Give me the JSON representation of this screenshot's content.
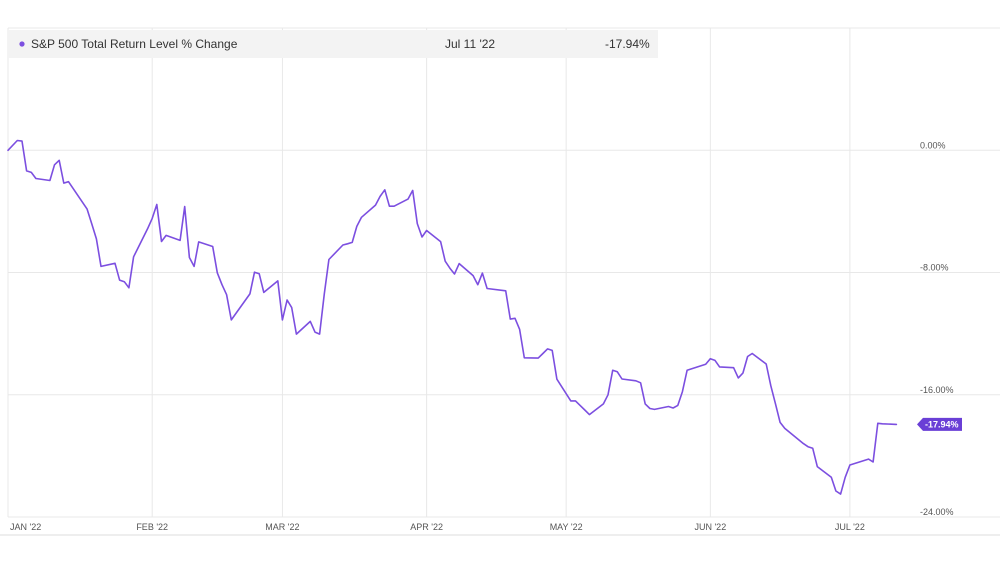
{
  "legend": {
    "series_name": "S&P 500 Total Return Level % Change",
    "date": "Jul 11 '22",
    "value": "-17.94%"
  },
  "colors": {
    "series": "#7c4fe0",
    "badge": "#6a3fd6",
    "grid": "#e8e8e8",
    "legend_bg": "#f3f3f3"
  },
  "chart_data": {
    "type": "line",
    "x_ticks": [
      "JAN '22",
      "FEB '22",
      "MAR '22",
      "APR '22",
      "MAY '22",
      "JUN '22",
      "JUL '22"
    ],
    "y_ticks": [
      "0.00%",
      "-8.00%",
      "-16.00%",
      "-24.00%"
    ],
    "y_tick_values": [
      0,
      -8,
      -16,
      -24
    ],
    "ylim": [
      -24,
      8
    ],
    "grid": true,
    "last_value_label": "-17.94%",
    "series": [
      {
        "name": "S&P 500 Total Return Level % Change",
        "x": [
          "2022-01-01",
          "2022-01-03",
          "2022-01-04",
          "2022-01-05",
          "2022-01-06",
          "2022-01-07",
          "2022-01-10",
          "2022-01-11",
          "2022-01-12",
          "2022-01-13",
          "2022-01-14",
          "2022-01-18",
          "2022-01-19",
          "2022-01-20",
          "2022-01-21",
          "2022-01-24",
          "2022-01-25",
          "2022-01-26",
          "2022-01-27",
          "2022-01-28",
          "2022-01-31",
          "2022-02-01",
          "2022-02-02",
          "2022-02-03",
          "2022-02-04",
          "2022-02-07",
          "2022-02-08",
          "2022-02-09",
          "2022-02-10",
          "2022-02-11",
          "2022-02-14",
          "2022-02-15",
          "2022-02-16",
          "2022-02-17",
          "2022-02-18",
          "2022-02-22",
          "2022-02-23",
          "2022-02-24",
          "2022-02-25",
          "2022-02-28",
          "2022-03-01",
          "2022-03-02",
          "2022-03-03",
          "2022-03-04",
          "2022-03-07",
          "2022-03-08",
          "2022-03-09",
          "2022-03-10",
          "2022-03-11",
          "2022-03-14",
          "2022-03-15",
          "2022-03-16",
          "2022-03-17",
          "2022-03-18",
          "2022-03-21",
          "2022-03-22",
          "2022-03-23",
          "2022-03-24",
          "2022-03-25",
          "2022-03-28",
          "2022-03-29",
          "2022-03-30",
          "2022-03-31",
          "2022-04-01",
          "2022-04-04",
          "2022-04-05",
          "2022-04-06",
          "2022-04-07",
          "2022-04-08",
          "2022-04-11",
          "2022-04-12",
          "2022-04-13",
          "2022-04-14",
          "2022-04-18",
          "2022-04-19",
          "2022-04-20",
          "2022-04-21",
          "2022-04-22",
          "2022-04-25",
          "2022-04-26",
          "2022-04-27",
          "2022-04-28",
          "2022-04-29",
          "2022-05-02",
          "2022-05-03",
          "2022-05-04",
          "2022-05-05",
          "2022-05-06",
          "2022-05-09",
          "2022-05-10",
          "2022-05-11",
          "2022-05-12",
          "2022-05-13",
          "2022-05-16",
          "2022-05-17",
          "2022-05-18",
          "2022-05-19",
          "2022-05-20",
          "2022-05-23",
          "2022-05-24",
          "2022-05-25",
          "2022-05-26",
          "2022-05-27",
          "2022-05-31",
          "2022-06-01",
          "2022-06-02",
          "2022-06-03",
          "2022-06-06",
          "2022-06-07",
          "2022-06-08",
          "2022-06-09",
          "2022-06-10",
          "2022-06-13",
          "2022-06-14",
          "2022-06-15",
          "2022-06-16",
          "2022-06-17",
          "2022-06-21",
          "2022-06-22",
          "2022-06-23",
          "2022-06-24",
          "2022-06-27",
          "2022-06-28",
          "2022-06-29",
          "2022-06-30",
          "2022-07-01",
          "2022-07-05",
          "2022-07-06",
          "2022-07-07",
          "2022-07-08",
          "2022-07-11"
        ],
        "values": [
          0.0,
          0.64,
          0.6,
          -1.35,
          -1.45,
          -1.85,
          -1.98,
          -0.95,
          -0.66,
          -2.15,
          -2.06,
          -3.85,
          -4.8,
          -5.8,
          -7.6,
          -7.4,
          -8.5,
          -8.6,
          -9.0,
          -6.97,
          -5.15,
          -4.46,
          -3.55,
          -5.97,
          -5.57,
          -5.9,
          -3.69,
          -7.02,
          -7.6,
          -6.0,
          -6.3,
          -8.02,
          -8.8,
          -9.45,
          -11.1,
          -9.4,
          -7.98,
          -8.08,
          -9.3,
          -8.55,
          -11.1,
          -9.8,
          -10.3,
          -12.03,
          -11.2,
          -11.9,
          -12.03,
          -9.4,
          -7.15,
          -6.2,
          -6.12,
          -6.03,
          -4.98,
          -4.39,
          -3.59,
          -3.02,
          -2.59,
          -3.66,
          -3.66,
          -3.2,
          -2.63,
          -4.8,
          -5.68,
          -5.25,
          -5.98,
          -7.26,
          -7.72,
          -8.1,
          -7.42,
          -8.2,
          -8.8,
          -8.04,
          -9.05,
          -9.2,
          -11.05,
          -11.0,
          -11.72,
          -13.58,
          -13.6,
          -13.3,
          -13.0,
          -13.1,
          -14.98,
          -16.4,
          -16.4,
          -16.7,
          -17.0,
          -17.3,
          -16.6,
          -16.0,
          -14.4,
          -14.5,
          -14.97,
          -15.09,
          -15.22,
          -16.6,
          -16.9,
          -16.96,
          -16.77,
          -16.87,
          -16.7,
          -15.8,
          -14.4,
          -14.01,
          -13.64,
          -13.75,
          -14.18,
          -14.23,
          -14.9,
          -14.58,
          -13.5,
          -13.3,
          -13.99,
          -15.41,
          -16.6,
          -17.81,
          -18.2,
          -19.2,
          -19.4,
          -19.5,
          -20.7,
          -21.4,
          -22.3,
          -22.5,
          -21.4,
          -20.6,
          -20.21,
          -20.4,
          -17.87,
          -17.9,
          -17.94
        ],
        "values_note": "",
        "x_note": ""
      }
    ]
  }
}
